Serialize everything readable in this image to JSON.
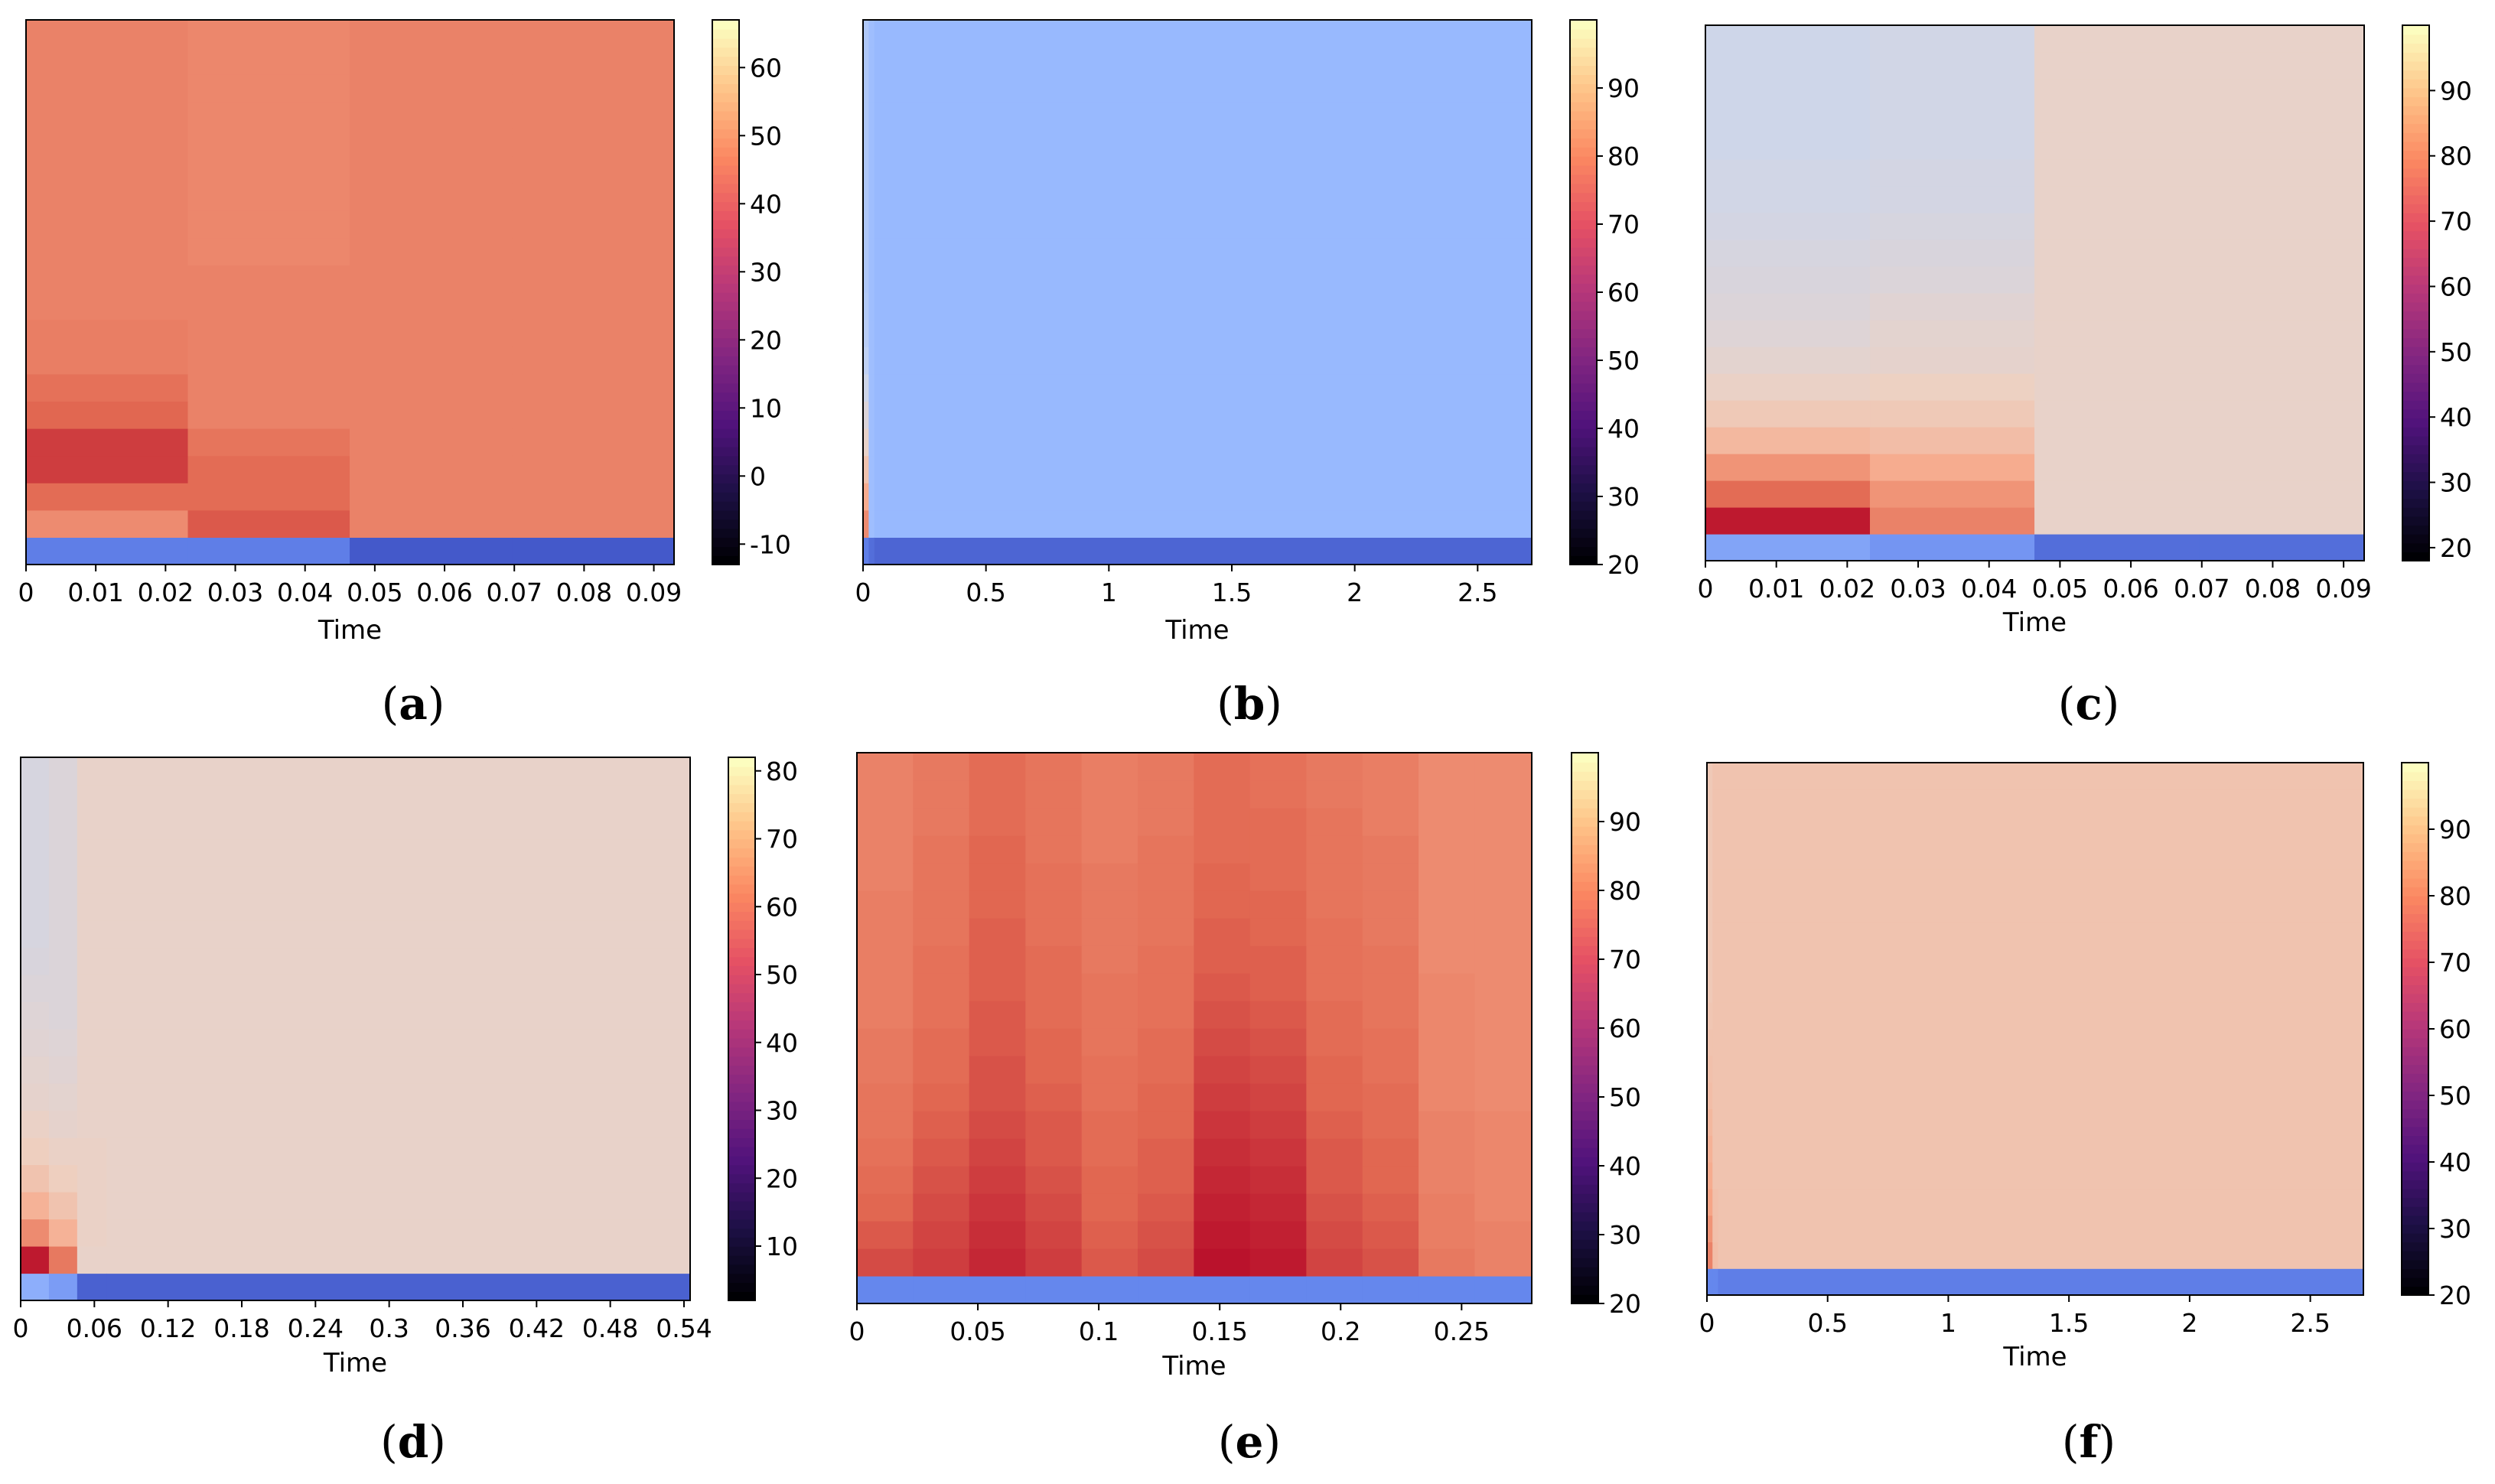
{
  "colormaps": {
    "coolwarm": [
      "#3b4cc0",
      "#6688ee",
      "#9abbff",
      "#c9d7f0",
      "#edd1c2",
      "#f7a889",
      "#e26952",
      "#b40426"
    ],
    "magma": [
      "#000004",
      "#1c1044",
      "#4f127b",
      "#812581",
      "#b5367a",
      "#e55064",
      "#fb8761",
      "#fec287",
      "#fcfdbf"
    ]
  },
  "chart_data": [
    {
      "panel": "a",
      "type": "heatmap",
      "title": "",
      "xlabel": "Time",
      "ylabel": "",
      "xlim": [
        0,
        0.0929
      ],
      "xticks": [
        0,
        0.01,
        0.02,
        0.03,
        0.04,
        0.05,
        0.06,
        0.07,
        0.08,
        0.09
      ],
      "xtick_labels": [
        "0",
        "0.01",
        "0.02",
        "0.03",
        "0.04",
        "0.05",
        "0.06",
        "0.07",
        "0.08",
        "0.09"
      ],
      "colorbar": {
        "cmap": "magma",
        "range": [
          -13,
          67
        ],
        "ticks": [
          -10,
          0,
          10,
          20,
          30,
          40,
          50,
          60
        ]
      },
      "num_rows": 20,
      "columns_t": [
        0,
        0.0232,
        0.0464,
        0.0697,
        0.0929
      ],
      "grid_values_fraction_coolwarm": [
        [
          0.12,
          0.78,
          0.85,
          0.92,
          0.92,
          0.86,
          0.84,
          0.81,
          0.81,
          0.8,
          0.8,
          0.8,
          0.8,
          0.8,
          0.8,
          0.8,
          0.8,
          0.8,
          0.8,
          0.8
        ],
        [
          0.12,
          0.88,
          0.85,
          0.85,
          0.83,
          0.8,
          0.8,
          0.8,
          0.8,
          0.8,
          0.8,
          0.79,
          0.79,
          0.79,
          0.79,
          0.79,
          0.79,
          0.79,
          0.79,
          0.79
        ],
        [
          0.03,
          0.8,
          0.8,
          0.8,
          0.8,
          0.8,
          0.8,
          0.8,
          0.8,
          0.8,
          0.8,
          0.8,
          0.8,
          0.8,
          0.8,
          0.8,
          0.8,
          0.8,
          0.8,
          0.8
        ],
        [
          0.03,
          0.8,
          0.8,
          0.8,
          0.8,
          0.8,
          0.8,
          0.8,
          0.8,
          0.8,
          0.8,
          0.8,
          0.8,
          0.8,
          0.8,
          0.8,
          0.8,
          0.8,
          0.8,
          0.8
        ]
      ],
      "caption": "a"
    },
    {
      "panel": "b",
      "type": "heatmap",
      "title": "",
      "xlabel": "Time",
      "ylabel": "",
      "xlim": [
        0,
        2.72
      ],
      "xticks": [
        0,
        0.5,
        1,
        1.5,
        2,
        2.5
      ],
      "xtick_labels": [
        "0",
        "0.5",
        "1",
        "1.5",
        "2",
        "2.5"
      ],
      "colorbar": {
        "cmap": "magma",
        "range": [
          20,
          100
        ],
        "ticks": [
          20,
          30,
          40,
          50,
          60,
          70,
          80,
          90
        ]
      },
      "num_rows": 20,
      "columns_t": [
        0,
        0.023,
        0.046,
        2.72
      ],
      "grid_values_fraction_coolwarm": [
        [
          0.12,
          0.78,
          0.7,
          0.62,
          0.55,
          0.5,
          0.45,
          0.4,
          0.38,
          0.36,
          0.35,
          0.35,
          0.35,
          0.35,
          0.35,
          0.35,
          0.35,
          0.35,
          0.35,
          0.35
        ],
        [
          0.08,
          0.3,
          0.3,
          0.3,
          0.3,
          0.3,
          0.3,
          0.3,
          0.3,
          0.3,
          0.3,
          0.3,
          0.3,
          0.3,
          0.3,
          0.3,
          0.3,
          0.3,
          0.3,
          0.3
        ],
        [
          0.06,
          0.28,
          0.28,
          0.28,
          0.28,
          0.28,
          0.28,
          0.28,
          0.28,
          0.28,
          0.28,
          0.28,
          0.28,
          0.28,
          0.28,
          0.28,
          0.28,
          0.28,
          0.28,
          0.28
        ]
      ],
      "caption": "b"
    },
    {
      "panel": "c",
      "type": "heatmap",
      "title": "",
      "xlabel": "Time",
      "ylabel": "",
      "xlim": [
        0,
        0.0929
      ],
      "xticks": [
        0,
        0.01,
        0.02,
        0.03,
        0.04,
        0.05,
        0.06,
        0.07,
        0.08,
        0.09
      ],
      "xtick_labels": [
        "0",
        "0.01",
        "0.02",
        "0.03",
        "0.04",
        "0.05",
        "0.06",
        "0.07",
        "0.08",
        "0.09"
      ],
      "colorbar": {
        "cmap": "magma",
        "range": [
          18,
          100
        ],
        "ticks": [
          20,
          30,
          40,
          50,
          60,
          70,
          80,
          90
        ]
      },
      "num_rows": 20,
      "columns_t": [
        0,
        0.0232,
        0.0464,
        0.0697,
        0.0929
      ],
      "grid_values_fraction_coolwarm": [
        [
          0.22,
          0.97,
          0.85,
          0.76,
          0.66,
          0.6,
          0.56,
          0.53,
          0.51,
          0.5,
          0.49,
          0.48,
          0.47,
          0.46,
          0.46,
          0.45,
          0.45,
          0.45,
          0.45,
          0.45
        ],
        [
          0.18,
          0.8,
          0.76,
          0.7,
          0.64,
          0.6,
          0.57,
          0.54,
          0.53,
          0.52,
          0.5,
          0.49,
          0.48,
          0.47,
          0.47,
          0.46,
          0.46,
          0.46,
          0.46,
          0.46
        ],
        [
          0.08,
          0.55,
          0.55,
          0.55,
          0.55,
          0.55,
          0.55,
          0.55,
          0.55,
          0.55,
          0.55,
          0.55,
          0.55,
          0.55,
          0.55,
          0.55,
          0.55,
          0.55,
          0.55,
          0.55
        ],
        [
          0.08,
          0.55,
          0.55,
          0.55,
          0.55,
          0.55,
          0.55,
          0.55,
          0.55,
          0.55,
          0.55,
          0.55,
          0.55,
          0.55,
          0.55,
          0.55,
          0.55,
          0.55,
          0.55,
          0.55
        ]
      ],
      "caption": "c"
    },
    {
      "panel": "d",
      "type": "heatmap",
      "title": "",
      "xlabel": "Time",
      "ylabel": "",
      "xlim": [
        0,
        0.545
      ],
      "xticks": [
        0,
        0.06,
        0.12,
        0.18,
        0.24,
        0.3,
        0.36,
        0.42,
        0.48,
        0.54
      ],
      "xtick_labels": [
        "0",
        "0.06",
        "0.12",
        "0.18",
        "0.24",
        "0.3",
        "0.36",
        "0.42",
        "0.48",
        "0.54"
      ],
      "colorbar": {
        "cmap": "magma",
        "range": [
          2,
          82
        ],
        "ticks": [
          10,
          20,
          30,
          40,
          50,
          60,
          70,
          80
        ]
      },
      "num_rows": 20,
      "columns_t": [
        0,
        0.023,
        0.046,
        0.07,
        0.545
      ],
      "grid_values_fraction_coolwarm": [
        [
          0.25,
          0.97,
          0.78,
          0.68,
          0.62,
          0.58,
          0.56,
          0.54,
          0.53,
          0.52,
          0.51,
          0.5,
          0.49,
          0.48,
          0.48,
          0.48,
          0.48,
          0.48,
          0.48,
          0.48
        ],
        [
          0.2,
          0.82,
          0.68,
          0.62,
          0.58,
          0.56,
          0.54,
          0.53,
          0.52,
          0.51,
          0.5,
          0.5,
          0.5,
          0.5,
          0.5,
          0.5,
          0.5,
          0.5,
          0.5,
          0.5
        ],
        [
          0.05,
          0.55,
          0.56,
          0.56,
          0.56,
          0.56,
          0.55,
          0.55,
          0.55,
          0.55,
          0.55,
          0.55,
          0.55,
          0.55,
          0.55,
          0.55,
          0.55,
          0.55,
          0.55,
          0.55
        ],
        [
          0.05,
          0.55,
          0.55,
          0.55,
          0.55,
          0.55,
          0.55,
          0.55,
          0.55,
          0.55,
          0.55,
          0.55,
          0.55,
          0.55,
          0.55,
          0.55,
          0.55,
          0.55,
          0.55,
          0.55
        ]
      ],
      "caption": "d"
    },
    {
      "panel": "e",
      "type": "heatmap",
      "title": "",
      "xlabel": "Time",
      "ylabel": "",
      "xlim": [
        0,
        0.279
      ],
      "xticks": [
        0,
        0.05,
        0.1,
        0.15,
        0.2,
        0.25
      ],
      "xtick_labels": [
        "0",
        "0.05",
        "0.1",
        "0.15",
        "0.2",
        "0.25"
      ],
      "colorbar": {
        "cmap": "magma",
        "range": [
          20,
          100
        ],
        "ticks": [
          20,
          30,
          40,
          50,
          60,
          70,
          80,
          90
        ]
      },
      "num_rows": 20,
      "columns_t": [
        0,
        0.0232,
        0.0464,
        0.0697,
        0.0929,
        0.1161,
        0.1393,
        0.1625,
        0.1858,
        0.209,
        0.2322,
        0.2554,
        0.279
      ],
      "grid_values_fraction_coolwarm": [
        [
          0.14,
          0.9,
          0.88,
          0.86,
          0.85,
          0.84,
          0.83,
          0.83,
          0.82,
          0.82,
          0.81,
          0.81,
          0.81,
          0.81,
          0.81,
          0.8,
          0.8,
          0.8,
          0.8,
          0.8
        ],
        [
          0.14,
          0.92,
          0.91,
          0.9,
          0.89,
          0.88,
          0.87,
          0.86,
          0.85,
          0.85,
          0.84,
          0.84,
          0.84,
          0.83,
          0.83,
          0.83,
          0.83,
          0.82,
          0.82,
          0.82
        ],
        [
          0.14,
          0.95,
          0.94,
          0.93,
          0.92,
          0.91,
          0.9,
          0.89,
          0.89,
          0.88,
          0.88,
          0.87,
          0.87,
          0.87,
          0.86,
          0.86,
          0.86,
          0.85,
          0.85,
          0.85
        ],
        [
          0.14,
          0.92,
          0.91,
          0.9,
          0.89,
          0.88,
          0.88,
          0.87,
          0.86,
          0.86,
          0.85,
          0.85,
          0.85,
          0.84,
          0.84,
          0.84,
          0.83,
          0.83,
          0.83,
          0.83
        ],
        [
          0.14,
          0.88,
          0.87,
          0.86,
          0.86,
          0.85,
          0.85,
          0.84,
          0.84,
          0.83,
          0.83,
          0.83,
          0.82,
          0.82,
          0.82,
          0.82,
          0.81,
          0.81,
          0.81,
          0.81
        ],
        [
          0.14,
          0.9,
          0.89,
          0.88,
          0.87,
          0.87,
          0.86,
          0.86,
          0.85,
          0.85,
          0.84,
          0.84,
          0.84,
          0.83,
          0.83,
          0.83,
          0.83,
          0.82,
          0.82,
          0.82
        ],
        [
          0.14,
          0.98,
          0.97,
          0.96,
          0.95,
          0.94,
          0.93,
          0.92,
          0.91,
          0.9,
          0.89,
          0.88,
          0.87,
          0.87,
          0.86,
          0.86,
          0.85,
          0.85,
          0.85,
          0.85
        ],
        [
          0.14,
          0.97,
          0.96,
          0.95,
          0.94,
          0.93,
          0.92,
          0.91,
          0.9,
          0.89,
          0.88,
          0.87,
          0.87,
          0.86,
          0.86,
          0.85,
          0.85,
          0.85,
          0.84,
          0.84
        ],
        [
          0.14,
          0.91,
          0.9,
          0.89,
          0.88,
          0.88,
          0.87,
          0.86,
          0.86,
          0.85,
          0.85,
          0.84,
          0.84,
          0.84,
          0.83,
          0.83,
          0.83,
          0.83,
          0.82,
          0.82
        ],
        [
          0.14,
          0.89,
          0.88,
          0.87,
          0.86,
          0.86,
          0.85,
          0.85,
          0.84,
          0.84,
          0.83,
          0.83,
          0.83,
          0.82,
          0.82,
          0.82,
          0.82,
          0.81,
          0.81,
          0.81
        ],
        [
          0.14,
          0.82,
          0.81,
          0.81,
          0.8,
          0.8,
          0.8,
          0.79,
          0.79,
          0.79,
          0.79,
          0.79,
          0.78,
          0.78,
          0.78,
          0.78,
          0.78,
          0.78,
          0.78,
          0.78
        ],
        [
          0.14,
          0.8,
          0.8,
          0.79,
          0.79,
          0.79,
          0.79,
          0.78,
          0.78,
          0.78,
          0.78,
          0.78,
          0.78,
          0.78,
          0.78,
          0.78,
          0.78,
          0.78,
          0.78,
          0.78
        ]
      ],
      "caption": "e"
    },
    {
      "panel": "f",
      "type": "heatmap",
      "title": "",
      "xlabel": "Time",
      "ylabel": "",
      "xlim": [
        0,
        2.72
      ],
      "xticks": [
        0,
        0.5,
        1,
        1.5,
        2,
        2.5
      ],
      "xtick_labels": [
        "0",
        "0.5",
        "1",
        "1.5",
        "2",
        "2.5"
      ],
      "colorbar": {
        "cmap": "magma",
        "range": [
          20,
          100
        ],
        "ticks": [
          20,
          30,
          40,
          50,
          60,
          70,
          80,
          90
        ]
      },
      "num_rows": 20,
      "columns_t": [
        0,
        0.023,
        0.046,
        2.72
      ],
      "grid_values_fraction_coolwarm": [
        [
          0.14,
          0.8,
          0.76,
          0.72,
          0.7,
          0.68,
          0.66,
          0.64,
          0.63,
          0.62,
          0.61,
          0.6,
          0.6,
          0.6,
          0.6,
          0.6,
          0.6,
          0.6,
          0.6,
          0.6
        ],
        [
          0.14,
          0.64,
          0.63,
          0.63,
          0.62,
          0.62,
          0.62,
          0.62,
          0.62,
          0.62,
          0.62,
          0.62,
          0.62,
          0.62,
          0.62,
          0.62,
          0.62,
          0.62,
          0.62,
          0.62
        ],
        [
          0.12,
          0.62,
          0.62,
          0.62,
          0.62,
          0.62,
          0.62,
          0.62,
          0.62,
          0.62,
          0.62,
          0.62,
          0.62,
          0.62,
          0.62,
          0.62,
          0.62,
          0.62,
          0.62,
          0.62
        ]
      ],
      "caption": "f"
    }
  ]
}
